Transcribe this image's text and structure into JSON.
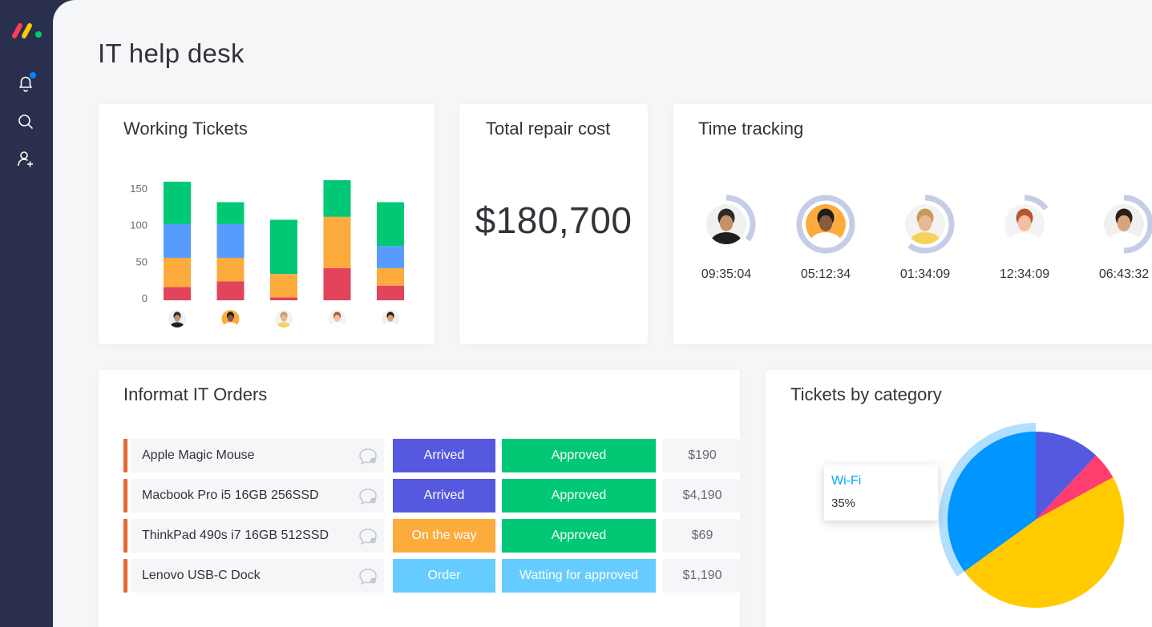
{
  "page": {
    "title": "IT help desk"
  },
  "sidebar": {
    "icons": [
      "notifications-icon",
      "search-icon",
      "invite-user-icon"
    ],
    "notification_dot_color": "#0085ff"
  },
  "cards": {
    "working_tickets": {
      "title": "Working Tickets"
    },
    "total_repair_cost": {
      "title": "Total repair cost",
      "value": "$180,700"
    },
    "time_tracking": {
      "title": "Time tracking",
      "people": [
        {
          "time": "09:35:04",
          "progress": 0.35
        },
        {
          "time": "05:12:34",
          "progress": 1.0
        },
        {
          "time": "01:34:09",
          "progress": 0.6
        },
        {
          "time": "12:34:09",
          "progress": 0.15
        },
        {
          "time": "06:43:32",
          "progress": 0.5
        }
      ]
    },
    "orders": {
      "title": "Informat IT Orders",
      "rows": [
        {
          "item": "Apple Magic Mouse",
          "state": "Arrived",
          "state_color": "#5559df",
          "approval": "Approved",
          "approval_color": "#00c875",
          "price": "$190"
        },
        {
          "item": "Macbook Pro i5 16GB 256SSD",
          "state": "Arrived",
          "state_color": "#5559df",
          "approval": "Approved",
          "approval_color": "#00c875",
          "price": "$4,190"
        },
        {
          "item": "ThinkPad 490s  i7 16GB 512SSD",
          "state": "On the way",
          "state_color": "#fdab3d",
          "approval": "Approved",
          "approval_color": "#00c875",
          "price": "$69"
        },
        {
          "item": "Lenovo USB-C Dock",
          "state": "Order",
          "state_color": "#66ccff",
          "approval": "Watting for approved",
          "approval_color": "#66ccff",
          "price": "$1,190"
        }
      ]
    },
    "tickets_by_category": {
      "title": "Tickets by category",
      "tooltip": {
        "label": "Wi-Fi",
        "value": "35%"
      }
    }
  },
  "chart_data": [
    {
      "type": "bar",
      "stacked": true,
      "title": "Working Tickets",
      "categories": [
        "person-1",
        "person-2",
        "person-3",
        "person-4",
        "person-5"
      ],
      "series": [
        {
          "color": "#e2445c",
          "values": [
            18,
            26,
            4,
            44,
            20
          ]
        },
        {
          "color": "#fdab3d",
          "values": [
            40,
            32,
            32,
            70,
            24
          ]
        },
        {
          "color": "#579bfc",
          "values": [
            46,
            46,
            0,
            0,
            30
          ]
        },
        {
          "color": "#00c875",
          "values": [
            58,
            30,
            74,
            50,
            60
          ]
        }
      ],
      "yticks": [
        0,
        50,
        100,
        150
      ],
      "ylim": [
        0,
        175
      ],
      "grid": false,
      "legend": "none"
    },
    {
      "type": "pie",
      "title": "Tickets by category",
      "slices": [
        {
          "label": "",
          "value": 12,
          "color": "#5559df"
        },
        {
          "label": "",
          "value": 5,
          "color": "#ff3d6e"
        },
        {
          "label": "",
          "value": 48,
          "color": "#ffcb00"
        },
        {
          "label": "Wi-Fi",
          "value": 35,
          "color": "#0096ff",
          "highlighted": true
        }
      ]
    }
  ]
}
